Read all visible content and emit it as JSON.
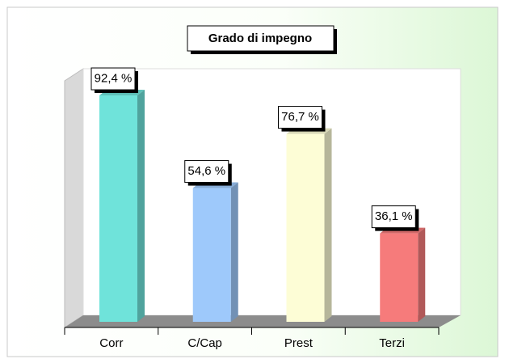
{
  "chart_data": {
    "type": "bar3d",
    "title": "Grado di impegno",
    "categories": [
      "Corr",
      "C/Cap",
      "Prest",
      "Terzi"
    ],
    "values": [
      92.4,
      54.6,
      76.7,
      36.1
    ],
    "value_labels": [
      "92,4 %",
      "54,6 %",
      "76,7 %",
      "36,1 %"
    ],
    "colors": [
      "#6fe3da",
      "#9ec9fb",
      "#fdfdd6",
      "#f67b7b"
    ]
  }
}
